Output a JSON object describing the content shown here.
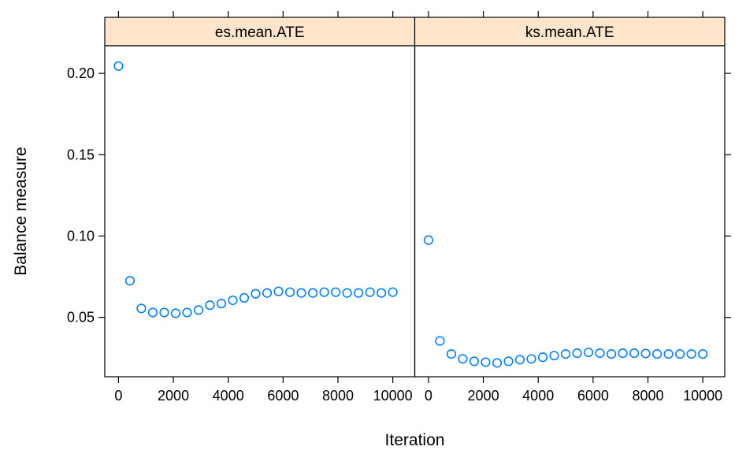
{
  "chart_data": {
    "type": "scatter",
    "xlabel": "Iteration",
    "ylabel": "Balance measure",
    "xlim": [
      -500,
      10800
    ],
    "ylim": [
      0.0135,
      0.217
    ],
    "xticks": [
      0,
      2000,
      4000,
      6000,
      8000,
      10000
    ],
    "xtick_labels": [
      "0",
      "2000",
      "4000",
      "6000",
      "8000",
      "10000"
    ],
    "yticks": [
      0.05,
      0.1,
      0.15,
      0.2
    ],
    "ytick_labels": [
      "0.05",
      "0.10",
      "0.15",
      "0.20"
    ],
    "grid": false,
    "colors": {
      "strip": "#FFE5CC",
      "points": "#0080FF",
      "axis": "#000000"
    },
    "panels": [
      {
        "strip": "es.mean.ATE",
        "x": [
          0,
          417,
          833,
          1250,
          1667,
          2083,
          2500,
          2917,
          3333,
          3750,
          4167,
          4583,
          5000,
          5417,
          5833,
          6250,
          6667,
          7083,
          7500,
          7917,
          8333,
          8750,
          9167,
          9583,
          10000
        ],
        "y": [
          0.2045,
          0.0725,
          0.0555,
          0.053,
          0.053,
          0.0525,
          0.053,
          0.0545,
          0.0575,
          0.0585,
          0.0605,
          0.062,
          0.0645,
          0.065,
          0.066,
          0.0655,
          0.065,
          0.065,
          0.0655,
          0.0655,
          0.065,
          0.065,
          0.0655,
          0.065,
          0.0655
        ]
      },
      {
        "strip": "ks.mean.ATE",
        "x": [
          0,
          417,
          833,
          1250,
          1667,
          2083,
          2500,
          2917,
          3333,
          3750,
          4167,
          4583,
          5000,
          5417,
          5833,
          6250,
          6667,
          7083,
          7500,
          7917,
          8333,
          8750,
          9167,
          9583,
          10000
        ],
        "y": [
          0.0975,
          0.0355,
          0.0275,
          0.0245,
          0.023,
          0.0225,
          0.022,
          0.023,
          0.024,
          0.0245,
          0.0255,
          0.0265,
          0.0275,
          0.028,
          0.0285,
          0.028,
          0.0275,
          0.028,
          0.028,
          0.0278,
          0.0275,
          0.0275,
          0.0275,
          0.0275,
          0.0275
        ]
      }
    ]
  }
}
